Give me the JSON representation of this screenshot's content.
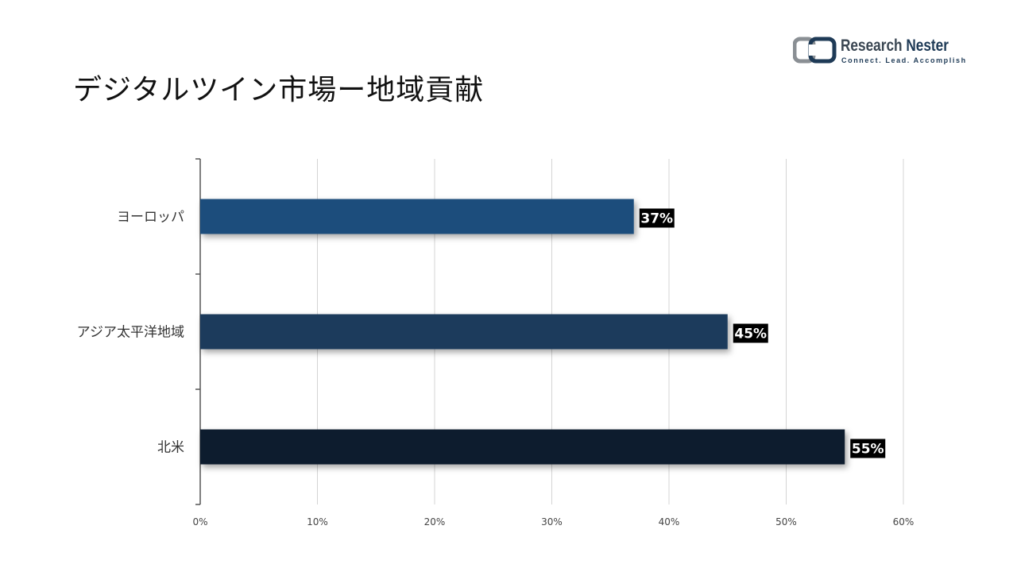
{
  "page": {
    "title": "デジタルツイン市場ー地域貢献"
  },
  "logo": {
    "name_part1": "Research",
    "name_part2": "Nester",
    "tagline": "Connect. Lead. Accomplish"
  },
  "chart_data": {
    "type": "bar",
    "orientation": "horizontal",
    "categories": [
      "ヨーロッパ",
      "アジア太平洋地域",
      "北米"
    ],
    "values": [
      37,
      45,
      55
    ],
    "data_labels": [
      "37%",
      "45%",
      "55%"
    ],
    "bar_colors": [
      "#1f4e7b",
      "#1b3a5c",
      "#0e1e2e"
    ],
    "x_ticks": [
      "0%",
      "10%",
      "20%",
      "30%",
      "40%",
      "50%",
      "60%"
    ],
    "xlim": [
      0,
      60
    ],
    "grid": true,
    "legend": "none"
  }
}
